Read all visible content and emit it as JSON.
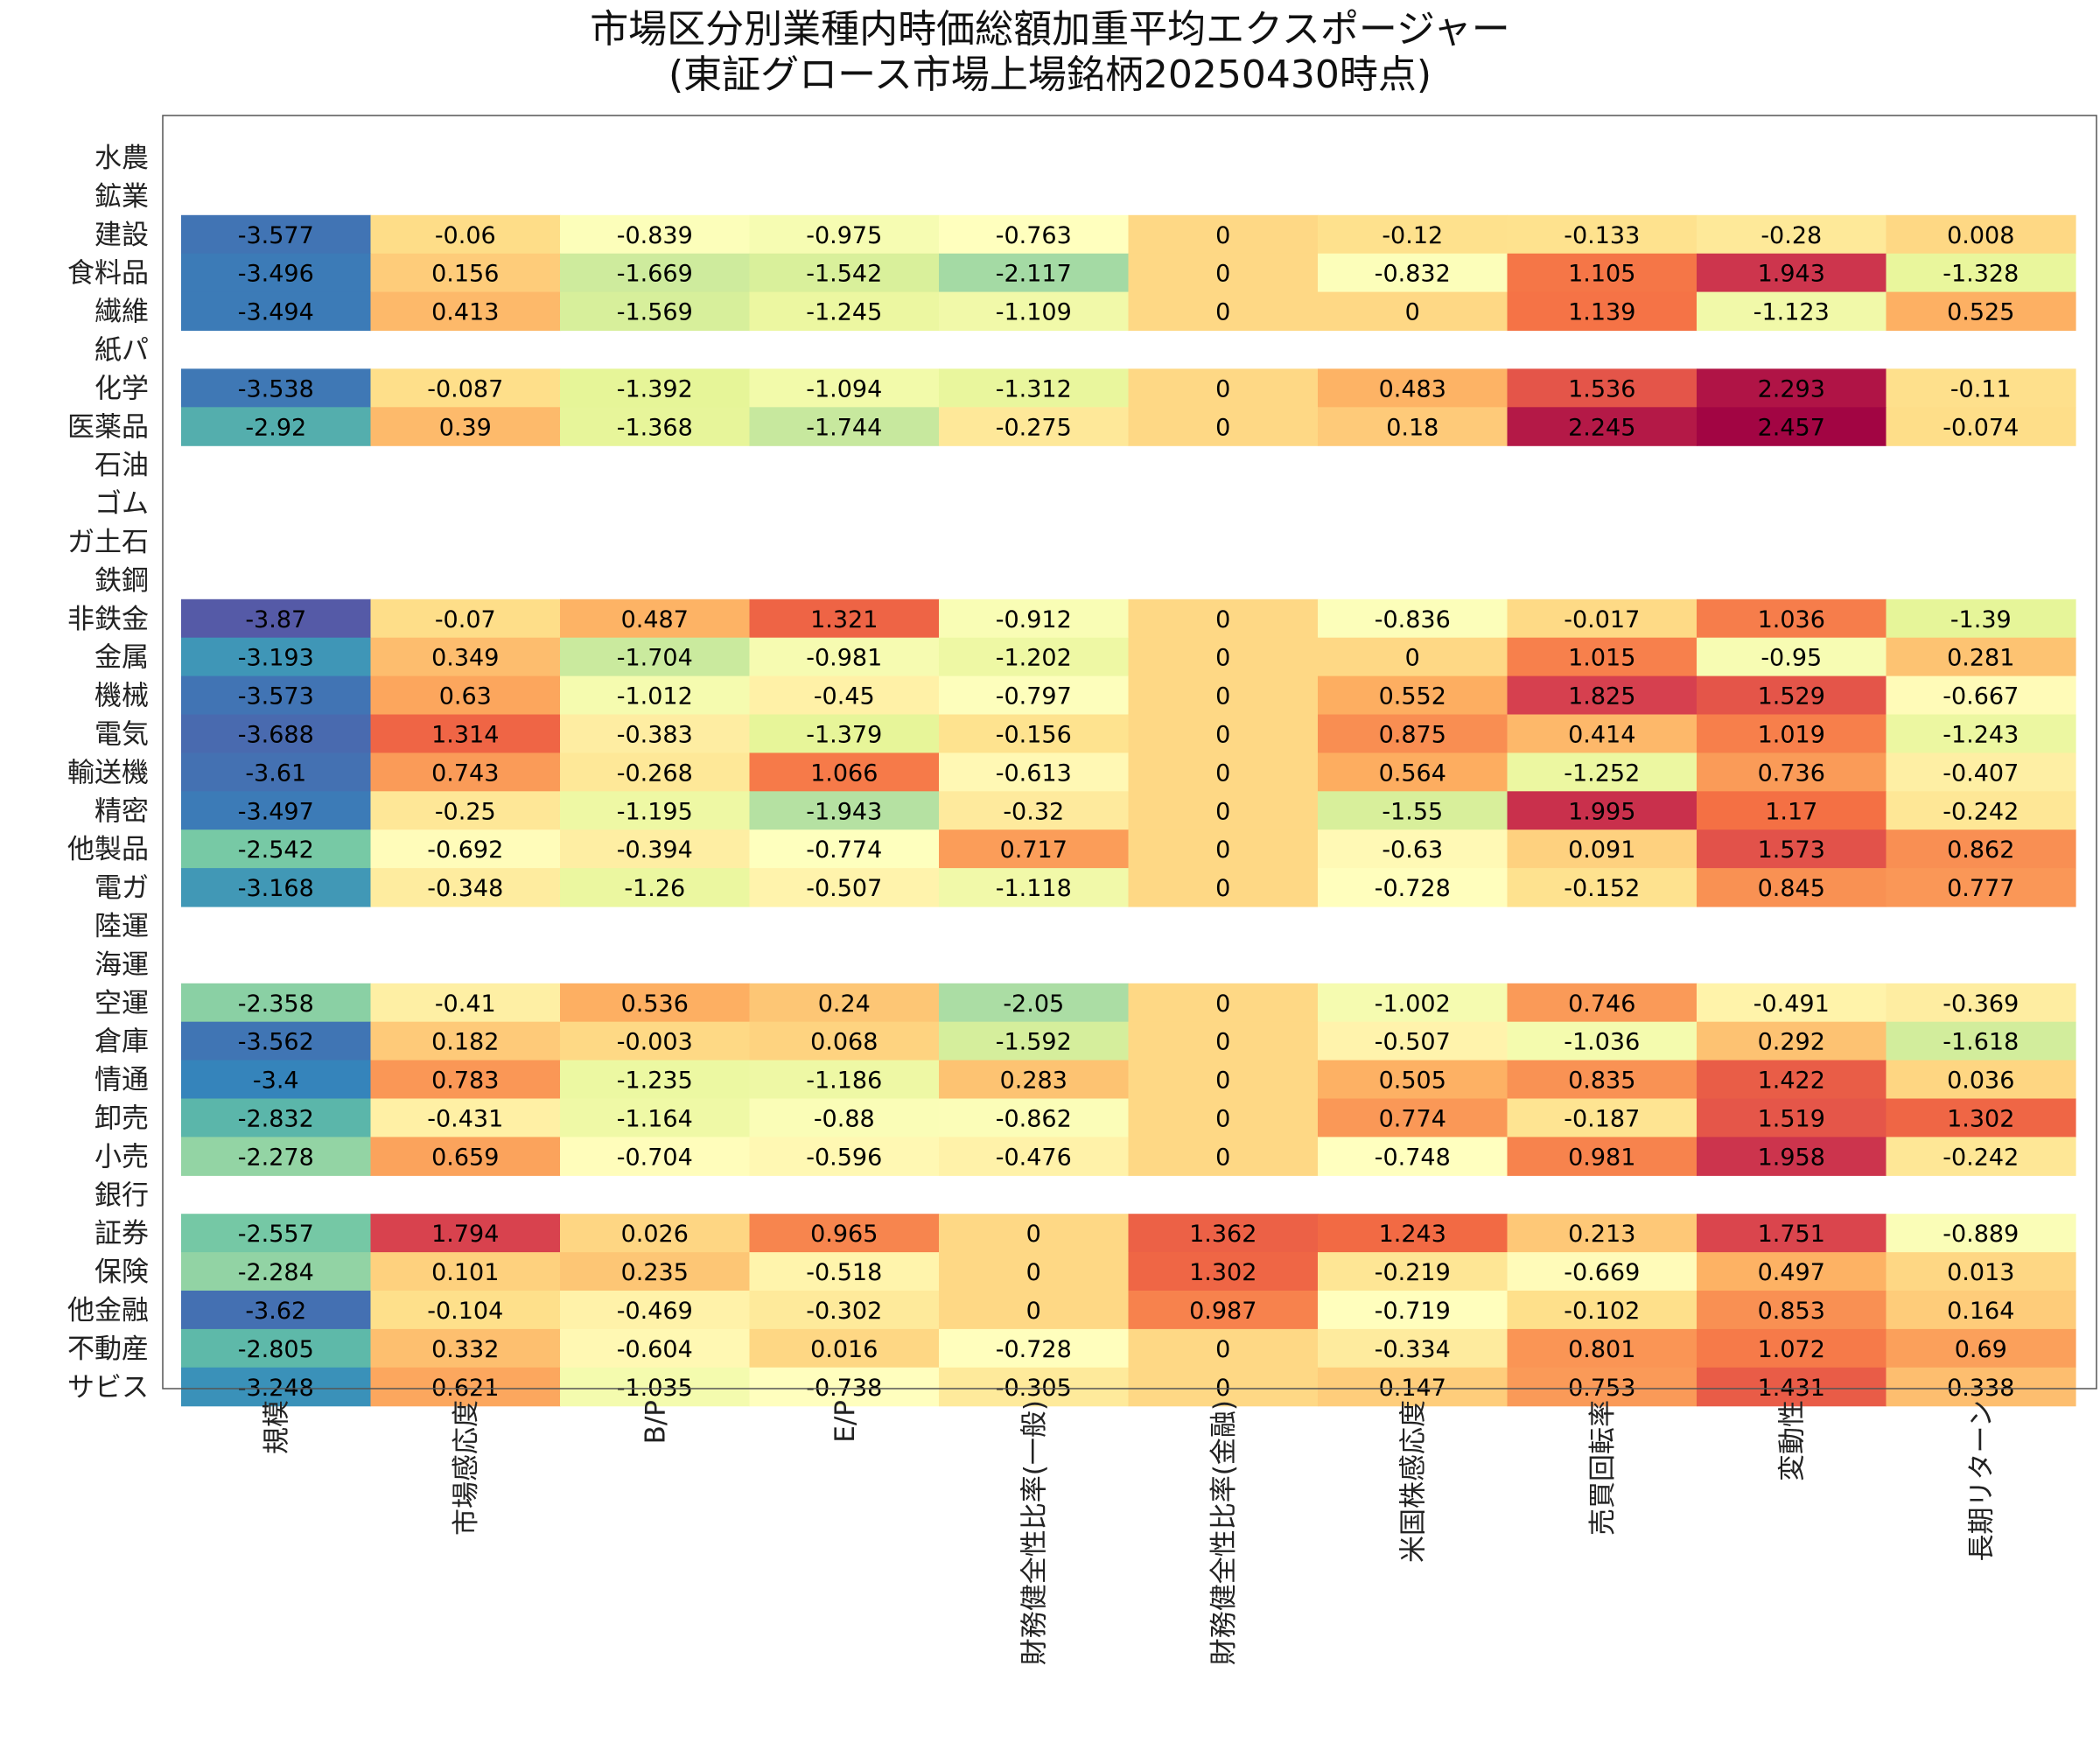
{
  "chart_data": {
    "type": "heatmap",
    "title": [
      "市場区分別業種内時価総額加重平均エクスポージャー",
      "(東証グロース市場上場銘柄20250430時点)"
    ],
    "columns": [
      "規模",
      "市場感応度",
      "B/P",
      "E/P",
      "財務健全性比率(一般)",
      "財務健全性比率(金融)",
      "米国株感応度",
      "売買回転率",
      "変動性",
      "長期リターン"
    ],
    "rows": [
      "水農",
      "鉱業",
      "建設",
      "食料品",
      "繊維",
      "紙パ",
      "化学",
      "医薬品",
      "石油",
      "ゴム",
      "ガ土石",
      "鉄鋼",
      "非鉄金",
      "金属",
      "機械",
      "電気",
      "輸送機",
      "精密",
      "他製品",
      "電ガ",
      "陸運",
      "海運",
      "空運",
      "倉庫",
      "情通",
      "卸売",
      "小売",
      "銀行",
      "証券",
      "保険",
      "他金融",
      "不動産",
      "サビス"
    ],
    "values": [
      null,
      null,
      [
        "-3.577",
        "-0.06",
        "-0.839",
        "-0.975",
        "-0.763",
        "0",
        "-0.12",
        "-0.133",
        "-0.28",
        "0.008"
      ],
      [
        "-3.496",
        "0.156",
        "-1.669",
        "-1.542",
        "-2.117",
        "0",
        "-0.832",
        "1.105",
        "1.943",
        "-1.328"
      ],
      [
        "-3.494",
        "0.413",
        "-1.569",
        "-1.245",
        "-1.109",
        "0",
        "0",
        "1.139",
        "-1.123",
        "0.525"
      ],
      null,
      [
        "-3.538",
        "-0.087",
        "-1.392",
        "-1.094",
        "-1.312",
        "0",
        "0.483",
        "1.536",
        "2.293",
        "-0.11"
      ],
      [
        "-2.92",
        "0.39",
        "-1.368",
        "-1.744",
        "-0.275",
        "0",
        "0.18",
        "2.245",
        "2.457",
        "-0.074"
      ],
      null,
      null,
      null,
      null,
      [
        "-3.87",
        "-0.07",
        "0.487",
        "1.321",
        "-0.912",
        "0",
        "-0.836",
        "-0.017",
        "1.036",
        "-1.39"
      ],
      [
        "-3.193",
        "0.349",
        "-1.704",
        "-0.981",
        "-1.202",
        "0",
        "0",
        "1.015",
        "-0.95",
        "0.281"
      ],
      [
        "-3.573",
        "0.63",
        "-1.012",
        "-0.45",
        "-0.797",
        "0",
        "0.552",
        "1.825",
        "1.529",
        "-0.667"
      ],
      [
        "-3.688",
        "1.314",
        "-0.383",
        "-1.379",
        "-0.156",
        "0",
        "0.875",
        "0.414",
        "1.019",
        "-1.243"
      ],
      [
        "-3.61",
        "0.743",
        "-0.268",
        "1.066",
        "-0.613",
        "0",
        "0.564",
        "-1.252",
        "0.736",
        "-0.407"
      ],
      [
        "-3.497",
        "-0.25",
        "-1.195",
        "-1.943",
        "-0.32",
        "0",
        "-1.55",
        "1.995",
        "1.17",
        "-0.242"
      ],
      [
        "-2.542",
        "-0.692",
        "-0.394",
        "-0.774",
        "0.717",
        "0",
        "-0.63",
        "0.091",
        "1.573",
        "0.862"
      ],
      [
        "-3.168",
        "-0.348",
        "-1.26",
        "-0.507",
        "-1.118",
        "0",
        "-0.728",
        "-0.152",
        "0.845",
        "0.777"
      ],
      null,
      null,
      [
        "-2.358",
        "-0.41",
        "0.536",
        "0.24",
        "-2.05",
        "0",
        "-1.002",
        "0.746",
        "-0.491",
        "-0.369"
      ],
      [
        "-3.562",
        "0.182",
        "-0.003",
        "0.068",
        "-1.592",
        "0",
        "-0.507",
        "-1.036",
        "0.292",
        "-1.618"
      ],
      [
        "-3.4",
        "0.783",
        "-1.235",
        "-1.186",
        "0.283",
        "0",
        "0.505",
        "0.835",
        "1.422",
        "0.036"
      ],
      [
        "-2.832",
        "-0.431",
        "-1.164",
        "-0.88",
        "-0.862",
        "0",
        "0.774",
        "-0.187",
        "1.519",
        "1.302"
      ],
      [
        "-2.278",
        "0.659",
        "-0.704",
        "-0.596",
        "-0.476",
        "0",
        "-0.748",
        "0.981",
        "1.958",
        "-0.242"
      ],
      null,
      [
        "-2.557",
        "1.794",
        "0.026",
        "0.965",
        "0",
        "1.362",
        "1.243",
        "0.213",
        "1.751",
        "-0.889"
      ],
      [
        "-2.284",
        "0.101",
        "0.235",
        "-0.518",
        "0",
        "1.302",
        "-0.219",
        "-0.669",
        "0.497",
        "0.013"
      ],
      [
        "-3.62",
        "-0.104",
        "-0.469",
        "-0.302",
        "0",
        "0.987",
        "-0.719",
        "-0.102",
        "0.853",
        "0.164"
      ],
      [
        "-2.805",
        "0.332",
        "-0.604",
        "0.016",
        "-0.728",
        "0",
        "-0.334",
        "0.801",
        "1.072",
        "0.69"
      ],
      [
        "-3.248",
        "0.621",
        "-1.035",
        "-0.738",
        "-0.305",
        "0",
        "0.147",
        "0.753",
        "1.431",
        "0.338"
      ]
    ],
    "color_scale": "Spectral_r",
    "value_range": [
      -4,
      2.5
    ],
    "legend": "none",
    "grid": false
  }
}
